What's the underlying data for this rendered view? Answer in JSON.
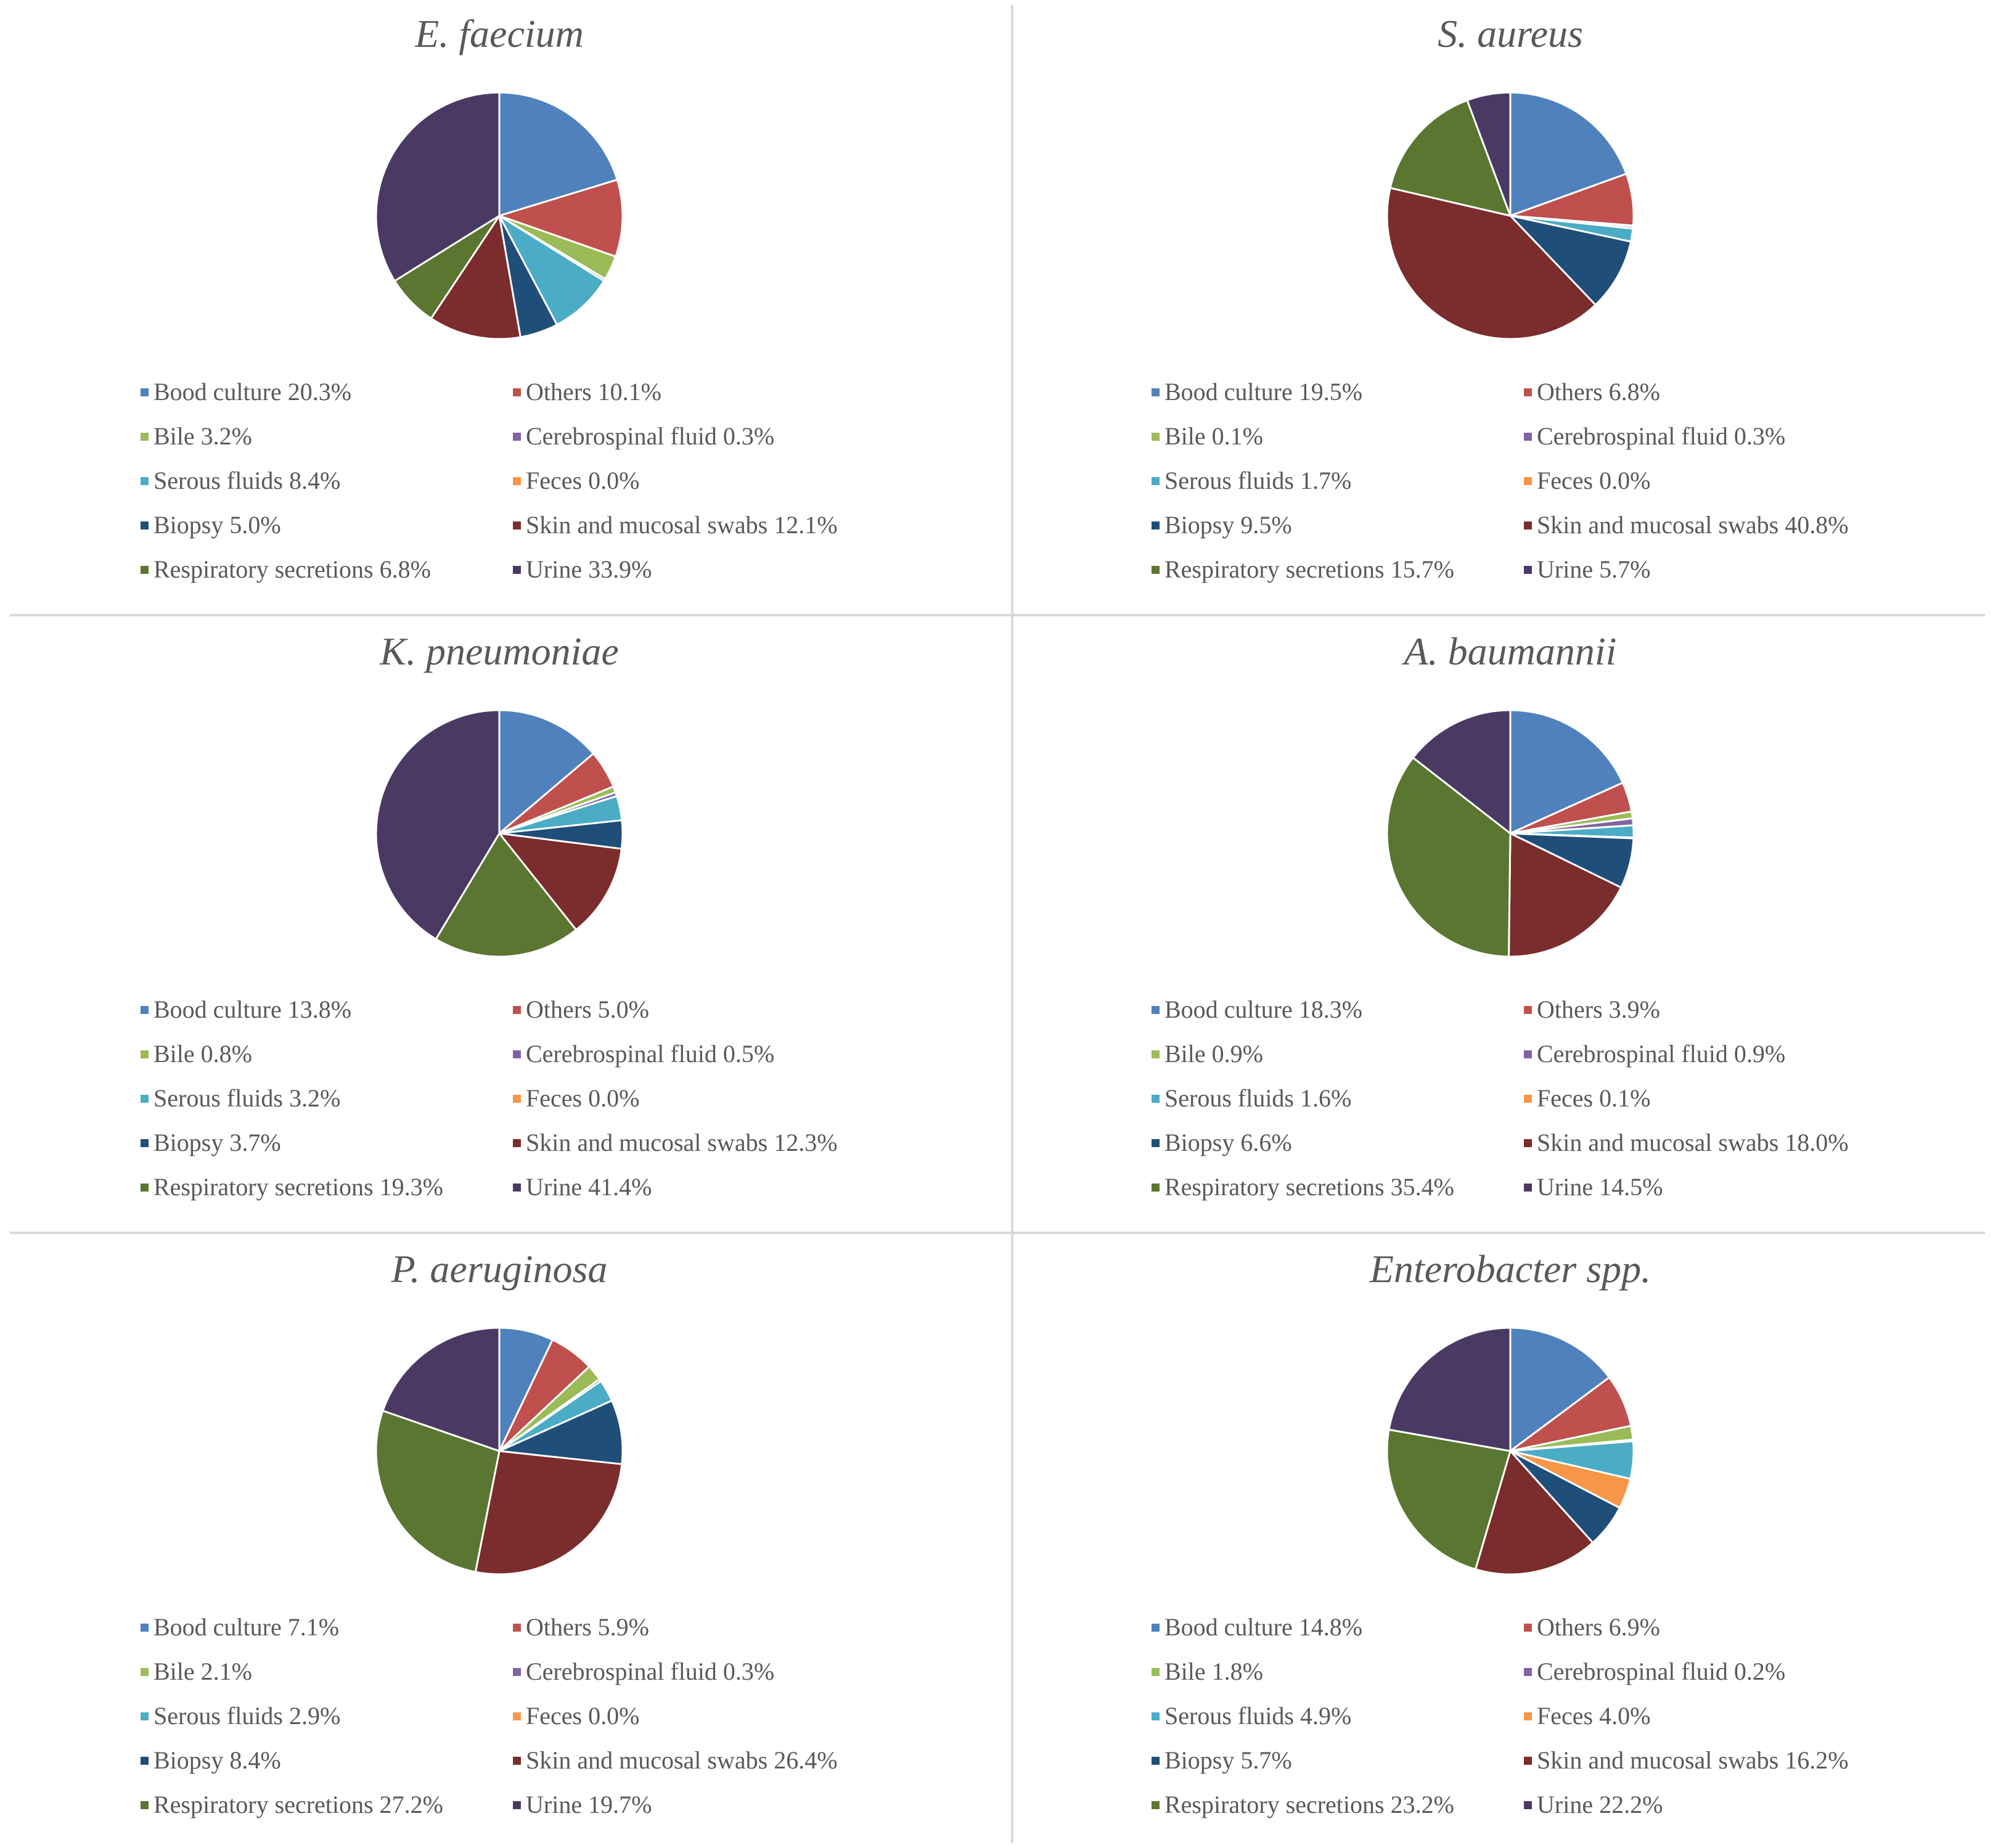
{
  "categories": [
    "Bood culture",
    "Others",
    "Bile",
    "Cerebrospinal fluid",
    "Serous fluids",
    "Feces",
    "Biopsy",
    "Skin and mucosal swabs",
    "Respiratory secretions",
    "Urine"
  ],
  "colors": [
    "#4F81BD",
    "#C0504D",
    "#9BBB59",
    "#8064A2",
    "#4BACC6",
    "#F79646",
    "#1F4E79",
    "#7B2C2C",
    "#5A7630",
    "#4A3A63"
  ],
  "chart_data": [
    {
      "type": "pie",
      "title": "E. faecium",
      "values": [
        20.3,
        10.1,
        3.2,
        0.3,
        8.4,
        0.0,
        5.0,
        12.1,
        6.8,
        33.9
      ],
      "labels": [
        "Bood culture 20.3%",
        "Others 10.1%",
        "Bile 3.2%",
        "Cerebrospinal fluid 0.3%",
        "Serous fluids 8.4%",
        "Feces 0.0%",
        "Biopsy 5.0%",
        "Skin and mucosal swabs 12.1%",
        "Respiratory secretions 6.8%",
        "Urine 33.9%"
      ]
    },
    {
      "type": "pie",
      "title": "S. aureus",
      "values": [
        19.5,
        6.8,
        0.1,
        0.3,
        1.7,
        0.0,
        9.5,
        40.8,
        15.7,
        5.7
      ],
      "labels": [
        "Bood culture 19.5%",
        "Others 6.8%",
        "Bile 0.1%",
        "Cerebrospinal fluid 0.3%",
        "Serous fluids 1.7%",
        "Feces 0.0%",
        "Biopsy 9.5%",
        "Skin and mucosal swabs 40.8%",
        "Respiratory secretions 15.7%",
        "Urine 5.7%"
      ]
    },
    {
      "type": "pie",
      "title": "K. pneumoniae",
      "values": [
        13.8,
        5.0,
        0.8,
        0.5,
        3.2,
        0.0,
        3.7,
        12.3,
        19.3,
        41.4
      ],
      "labels": [
        "Bood culture 13.8%",
        "Others 5.0%",
        "Bile 0.8%",
        "Cerebrospinal fluid 0.5%",
        "Serous fluids 3.2%",
        "Feces 0.0%",
        "Biopsy 3.7%",
        "Skin and mucosal swabs 12.3%",
        "Respiratory secretions 19.3%",
        "Urine 41.4%"
      ]
    },
    {
      "type": "pie",
      "title": "A. baumannii",
      "values": [
        18.3,
        3.9,
        0.9,
        0.9,
        1.6,
        0.1,
        6.6,
        18.0,
        35.4,
        14.5
      ],
      "labels": [
        "Bood culture 18.3%",
        "Others 3.9%",
        "Bile 0.9%",
        "Cerebrospinal fluid 0.9%",
        "Serous fluids 1.6%",
        "Feces 0.1%",
        "Biopsy 6.6%",
        "Skin and mucosal swabs 18.0%",
        "Respiratory secretions 35.4%",
        "Urine 14.5%"
      ]
    },
    {
      "type": "pie",
      "title": "P. aeruginosa",
      "values": [
        7.1,
        5.9,
        2.1,
        0.3,
        2.9,
        0.0,
        8.4,
        26.4,
        27.2,
        19.7
      ],
      "labels": [
        "Bood culture 7.1%",
        "Others 5.9%",
        "Bile 2.1%",
        "Cerebrospinal fluid 0.3%",
        "Serous fluids 2.9%",
        "Feces 0.0%",
        "Biopsy 8.4%",
        "Skin and mucosal swabs 26.4%",
        "Respiratory secretions 27.2%",
        "Urine 19.7%"
      ]
    },
    {
      "type": "pie",
      "title": "Enterobacter spp.",
      "values": [
        14.8,
        6.9,
        1.8,
        0.2,
        4.9,
        4.0,
        5.7,
        16.2,
        23.2,
        22.2
      ],
      "labels": [
        "Bood culture 14.8%",
        "Others 6.9%",
        "Bile 1.8%",
        "Cerebrospinal fluid 0.2%",
        "Serous fluids 4.9%",
        "Feces 4.0%",
        "Biopsy 5.7%",
        "Skin and mucosal swabs 16.2%",
        "Respiratory secretions 23.2%",
        "Urine 22.2%"
      ]
    }
  ]
}
